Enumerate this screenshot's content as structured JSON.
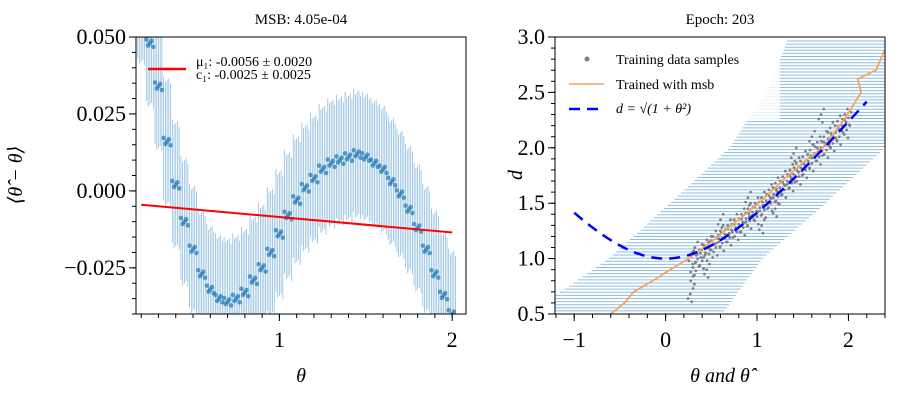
{
  "chart_data": [
    {
      "type": "scatter",
      "title": "MSB: 4.05e-04",
      "xlabel": "θ",
      "ylabel": "⟨θ̂ − θ⟩",
      "xlim": [
        0.17,
        2.08
      ],
      "ylim": [
        -0.04,
        0.05
      ],
      "x_ticks": [
        {
          "v": 1,
          "label": "1"
        },
        {
          "v": 2,
          "label": "2"
        }
      ],
      "y_ticks": [
        {
          "v": 0.05,
          "label": "0.050"
        },
        {
          "v": 0.025,
          "label": "0.025"
        },
        {
          "v": 0,
          "label": "0.000"
        },
        {
          "v": -0.025,
          "label": "−0.025"
        }
      ],
      "legend": {
        "line_color": "#ff0000",
        "mu_label": "μ₁: -0.0056 ± 0.0020",
        "c_label": "c₁: -0.0025 ± 0.0025",
        "position": "top-left"
      },
      "fit_line": {
        "color": "#ff0000",
        "x": [
          0.2,
          2.0
        ],
        "y": [
          -0.0045,
          -0.0135
        ]
      },
      "points_color": "#1f77b4",
      "errorbar_color": "#8fbde0",
      "points": [
        [
          0.2,
          0.062,
          0.02
        ],
        [
          0.25,
          0.048,
          0.02
        ],
        [
          0.3,
          0.034,
          0.02
        ],
        [
          0.35,
          0.016,
          0.02
        ],
        [
          0.4,
          0.002,
          0.02
        ],
        [
          0.45,
          -0.01,
          0.02
        ],
        [
          0.5,
          -0.019,
          0.02
        ],
        [
          0.55,
          -0.027,
          0.02
        ],
        [
          0.6,
          -0.032,
          0.02
        ],
        [
          0.65,
          -0.035,
          0.02
        ],
        [
          0.7,
          -0.036,
          0.02
        ],
        [
          0.75,
          -0.035,
          0.02
        ],
        [
          0.8,
          -0.033,
          0.02
        ],
        [
          0.85,
          -0.029,
          0.02
        ],
        [
          0.9,
          -0.025,
          0.02
        ],
        [
          0.95,
          -0.02,
          0.02
        ],
        [
          1.0,
          -0.014,
          0.02
        ],
        [
          1.05,
          -0.008,
          0.02
        ],
        [
          1.1,
          -0.003,
          0.02
        ],
        [
          1.15,
          0.001,
          0.02
        ],
        [
          1.2,
          0.004,
          0.02
        ],
        [
          1.25,
          0.007,
          0.02
        ],
        [
          1.3,
          0.009,
          0.02
        ],
        [
          1.35,
          0.01,
          0.02
        ],
        [
          1.4,
          0.011,
          0.02
        ],
        [
          1.45,
          0.012,
          0.02
        ],
        [
          1.5,
          0.011,
          0.02
        ],
        [
          1.55,
          0.009,
          0.02
        ],
        [
          1.6,
          0.007,
          0.02
        ],
        [
          1.65,
          0.003,
          0.02
        ],
        [
          1.7,
          -0.001,
          0.02
        ],
        [
          1.75,
          -0.006,
          0.02
        ],
        [
          1.8,
          -0.012,
          0.02
        ],
        [
          1.85,
          -0.019,
          0.02
        ],
        [
          1.9,
          -0.027,
          0.02
        ],
        [
          1.95,
          -0.034,
          0.02
        ],
        [
          2.0,
          -0.04,
          0.02
        ]
      ]
    },
    {
      "type": "scatter",
      "title": "Epoch: 203",
      "xlabel": "θ and θ̂",
      "ylabel": "d",
      "xlim": [
        -1.21,
        2.4
      ],
      "ylim": [
        0.5,
        3.0
      ],
      "x_ticks": [
        {
          "v": -1,
          "label": "−1"
        },
        {
          "v": 0,
          "label": "0"
        },
        {
          "v": 1,
          "label": "1"
        },
        {
          "v": 2,
          "label": "2"
        }
      ],
      "y_ticks": [
        {
          "v": 0.5,
          "label": "0.5"
        },
        {
          "v": 1,
          "label": "1.0"
        },
        {
          "v": 1.5,
          "label": "1.5"
        },
        {
          "v": 2,
          "label": "2.0"
        },
        {
          "v": 2.5,
          "label": "2.5"
        },
        {
          "v": 3,
          "label": "3.0"
        }
      ],
      "legend": {
        "position": "top-left",
        "entries": [
          {
            "label": "Training data samples",
            "color": "#808080",
            "style": "dot"
          },
          {
            "label": "Trained with msb",
            "color": "#f4a460",
            "style": "line"
          },
          {
            "label": "d = √(1 + θ²)",
            "color": "#0000ff",
            "style": "dashed"
          }
        ]
      },
      "truth_curve": {
        "formula": "d = sqrt(1 + θ^2)",
        "x_range": [
          -1,
          2.2
        ],
        "color": "#0000ff"
      },
      "trained_line": {
        "color": "#f4a460",
        "points": [
          [
            -0.6,
            0.5
          ],
          [
            -0.45,
            0.6
          ],
          [
            -0.35,
            0.7
          ],
          [
            -0.1,
            0.82
          ],
          [
            0.05,
            0.9
          ],
          [
            0.25,
            1.0
          ],
          [
            0.5,
            1.15
          ],
          [
            0.75,
            1.32
          ],
          [
            1.02,
            1.5
          ],
          [
            1.3,
            1.72
          ],
          [
            1.55,
            1.9
          ],
          [
            1.72,
            2.0
          ],
          [
            1.95,
            2.25
          ],
          [
            2.14,
            2.5
          ],
          [
            2.1,
            2.62
          ],
          [
            2.3,
            2.7
          ],
          [
            2.38,
            2.85
          ],
          [
            2.42,
            2.92
          ]
        ]
      },
      "errorbar_band": {
        "color": "#8fbde0",
        "rows": [
          [
            0.5,
            -1.5,
            0.62
          ],
          [
            1.0,
            -0.62,
            1.06
          ],
          [
            1.5,
            0.05,
            1.75
          ],
          [
            2.0,
            0.7,
            2.4
          ],
          [
            2.5,
            1.1,
            2.6
          ],
          [
            3.0,
            1.35,
            2.6
          ]
        ]
      },
      "samples": [
        [
          0.28,
          1.02
        ],
        [
          0.3,
          0.92
        ],
        [
          0.32,
          1.1
        ],
        [
          0.35,
          1.0
        ],
        [
          0.37,
          1.08
        ],
        [
          0.4,
          0.98
        ],
        [
          0.42,
          1.12
        ],
        [
          0.44,
          1.05
        ],
        [
          0.47,
          1.15
        ],
        [
          0.5,
          1.08
        ],
        [
          0.52,
          1.2
        ],
        [
          0.55,
          1.1
        ],
        [
          0.58,
          1.18
        ],
        [
          0.6,
          1.25
        ],
        [
          0.62,
          1.14
        ],
        [
          0.65,
          1.22
        ],
        [
          0.68,
          1.3
        ],
        [
          0.7,
          1.19
        ],
        [
          0.72,
          1.26
        ],
        [
          0.75,
          1.35
        ],
        [
          0.78,
          1.24
        ],
        [
          0.8,
          1.31
        ],
        [
          0.83,
          1.4
        ],
        [
          0.85,
          1.28
        ],
        [
          0.88,
          1.36
        ],
        [
          0.9,
          1.45
        ],
        [
          0.92,
          1.34
        ],
        [
          0.95,
          1.42
        ],
        [
          0.98,
          1.5
        ],
        [
          1.0,
          1.38
        ],
        [
          1.03,
          1.46
        ],
        [
          1.05,
          1.55
        ],
        [
          1.08,
          1.44
        ],
        [
          1.1,
          1.52
        ],
        [
          1.13,
          1.62
        ],
        [
          1.15,
          1.5
        ],
        [
          1.18,
          1.58
        ],
        [
          1.2,
          1.68
        ],
        [
          1.23,
          1.56
        ],
        [
          1.25,
          1.64
        ],
        [
          1.28,
          1.74
        ],
        [
          1.3,
          1.62
        ],
        [
          1.33,
          1.7
        ],
        [
          1.36,
          1.8
        ],
        [
          1.38,
          1.68
        ],
        [
          1.4,
          1.76
        ],
        [
          1.43,
          1.86
        ],
        [
          1.46,
          1.74
        ],
        [
          1.48,
          1.82
        ],
        [
          1.5,
          1.92
        ],
        [
          1.53,
          1.8
        ],
        [
          1.56,
          1.88
        ],
        [
          1.58,
          1.98
        ],
        [
          1.6,
          1.86
        ],
        [
          1.63,
          1.95
        ],
        [
          1.66,
          2.05
        ],
        [
          1.68,
          1.92
        ],
        [
          1.7,
          2.0
        ],
        [
          1.73,
          2.1
        ],
        [
          1.76,
          1.98
        ],
        [
          1.78,
          2.08
        ],
        [
          1.8,
          2.18
        ],
        [
          1.83,
          2.04
        ],
        [
          1.86,
          2.14
        ],
        [
          1.88,
          2.24
        ],
        [
          1.9,
          2.1
        ],
        [
          1.93,
          2.2
        ],
        [
          1.96,
          2.3
        ],
        [
          1.98,
          2.16
        ],
        [
          2.0,
          2.27
        ],
        [
          0.27,
          0.68
        ],
        [
          0.3,
          0.84
        ],
        [
          0.45,
          0.9
        ],
        [
          0.9,
          1.55
        ],
        [
          1.2,
          1.45
        ],
        [
          1.6,
          2.1
        ],
        [
          0.6,
          1.35
        ],
        [
          1.4,
          1.95
        ],
        [
          1.05,
          1.3
        ],
        [
          1.7,
          2.3
        ]
      ]
    }
  ]
}
